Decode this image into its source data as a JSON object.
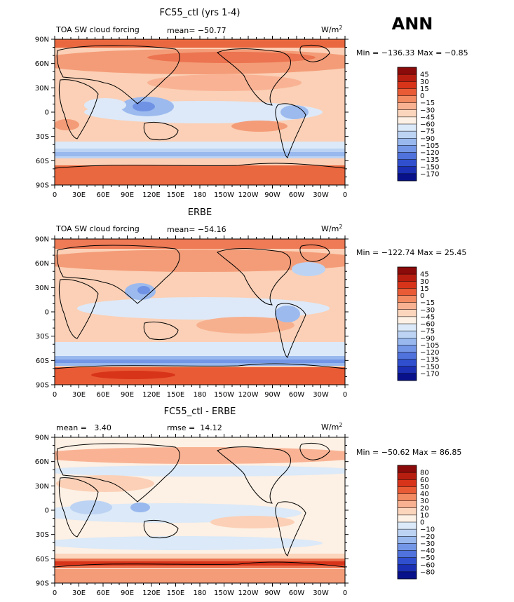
{
  "season": "ANN",
  "chart_data": [
    {
      "type": "heatmap",
      "title": "FC55_ctl (yrs 1-4)",
      "left_label": "TOA SW cloud forcing",
      "center_label": "mean= −50.77",
      "units_label": "W/m",
      "units_sup": "2",
      "minmax": "Min = −136.33 Max =  −0.85",
      "x_ticks": [
        "0",
        "30E",
        "60E",
        "90E",
        "120E",
        "150E",
        "180",
        "150W",
        "120W",
        "90W",
        "60W",
        "30W",
        "0"
      ],
      "y_ticks": [
        "90N",
        "60N",
        "30N",
        "0",
        "30S",
        "60S",
        "90S"
      ],
      "colorbar_levels": [
        "45",
        "30",
        "15",
        "0",
        "−15",
        "−30",
        "−45",
        "−60",
        "−75",
        "−90",
        "−105",
        "−120",
        "−135",
        "−150",
        "−170"
      ],
      "colorbar_colors": [
        "#8b0a0a",
        "#b81e10",
        "#d8341a",
        "#e95b35",
        "#f28a62",
        "#f8b292",
        "#fcd5bd",
        "#fdf0e4",
        "#dbe9f8",
        "#bcd3f3",
        "#98b8ee",
        "#7396e6",
        "#4f72dc",
        "#2f4fcf",
        "#1a2fb3",
        "#08118a"
      ]
    },
    {
      "type": "heatmap",
      "title": "ERBE",
      "left_label": "TOA SW cloud forcing",
      "center_label": "mean= −54.16",
      "units_label": "W/m",
      "units_sup": "2",
      "minmax": "Min = −122.74 Max =  25.45",
      "x_ticks": [
        "0",
        "30E",
        "60E",
        "90E",
        "120E",
        "150E",
        "180",
        "150W",
        "120W",
        "90W",
        "60W",
        "30W",
        "0"
      ],
      "y_ticks": [
        "90N",
        "60N",
        "30N",
        "0",
        "30S",
        "60S",
        "90S"
      ],
      "colorbar_levels": [
        "45",
        "30",
        "15",
        "0",
        "−15",
        "−30",
        "−45",
        "−60",
        "−75",
        "−90",
        "−105",
        "−120",
        "−135",
        "−150",
        "−170"
      ],
      "colorbar_colors": [
        "#8b0a0a",
        "#b81e10",
        "#d8341a",
        "#e95b35",
        "#f28a62",
        "#f8b292",
        "#fcd5bd",
        "#fdf0e4",
        "#dbe9f8",
        "#bcd3f3",
        "#98b8ee",
        "#7396e6",
        "#4f72dc",
        "#2f4fcf",
        "#1a2fb3",
        "#08118a"
      ]
    },
    {
      "type": "heatmap",
      "title": "FC55_ctl - ERBE",
      "left_label": "mean =   3.40",
      "center_label": "rmse =  14.12",
      "units_label": "W/m",
      "units_sup": "2",
      "minmax": "Min = −50.62 Max =  86.85",
      "x_ticks": [
        "0",
        "30E",
        "60E",
        "90E",
        "120E",
        "150E",
        "180",
        "150W",
        "120W",
        "90W",
        "60W",
        "30W",
        "0"
      ],
      "y_ticks": [
        "90N",
        "60N",
        "30N",
        "0",
        "30S",
        "60S",
        "90S"
      ],
      "colorbar_levels": [
        "80",
        "60",
        "50",
        "40",
        "30",
        "20",
        "10",
        "0",
        "−10",
        "−20",
        "−30",
        "−40",
        "−50",
        "−60",
        "−80"
      ],
      "colorbar_colors": [
        "#8b0a0a",
        "#b81e10",
        "#d8341a",
        "#e95b35",
        "#f28a62",
        "#f8b292",
        "#fcd5bd",
        "#fdf0e4",
        "#dbe9f8",
        "#bcd3f3",
        "#98b8ee",
        "#7396e6",
        "#4f72dc",
        "#2f4fcf",
        "#1a2fb3",
        "#08118a"
      ]
    }
  ]
}
